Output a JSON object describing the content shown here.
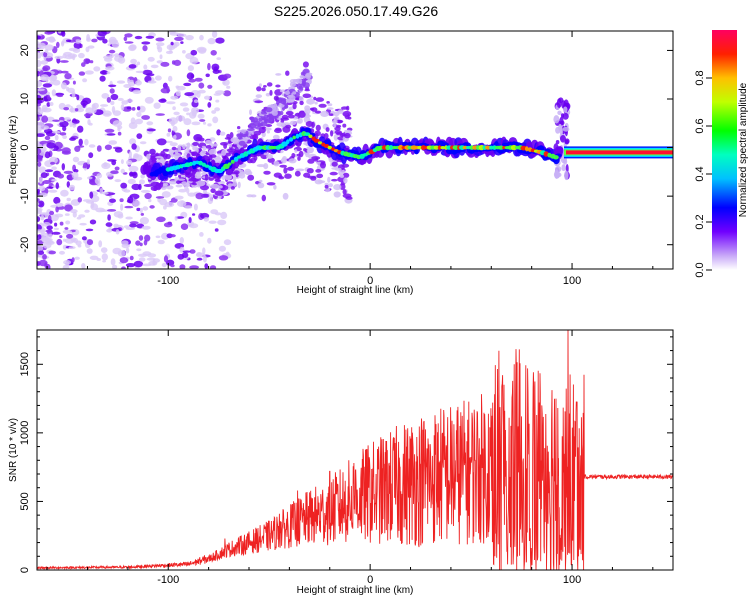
{
  "title": "S225.2026.050.17.49.G26",
  "chart_data": [
    {
      "type": "heatmap",
      "xlabel": "Height of straight line (km)",
      "ylabel": "Frequency (Hz)",
      "xlim": [
        -165,
        150
      ],
      "ylim": [
        -25,
        24
      ],
      "xticks": [
        -100,
        0,
        100
      ],
      "yticks": [
        -20,
        -10,
        0,
        10,
        20
      ],
      "ridge": [
        [
          -105,
          -5
        ],
        [
          -95,
          -4
        ],
        [
          -85,
          -3
        ],
        [
          -75,
          -5
        ],
        [
          -65,
          -2
        ],
        [
          -55,
          0
        ],
        [
          -45,
          0
        ],
        [
          -38,
          2
        ],
        [
          -32,
          3
        ],
        [
          -25,
          1
        ],
        [
          -15,
          -1
        ],
        [
          -5,
          -2
        ],
        [
          5,
          0
        ],
        [
          20,
          0
        ],
        [
          40,
          0
        ],
        [
          60,
          0
        ],
        [
          75,
          0
        ],
        [
          85,
          -1
        ],
        [
          92,
          -2
        ],
        [
          97,
          -1
        ],
        [
          110,
          -1
        ],
        [
          130,
          -1
        ],
        [
          150,
          -1
        ]
      ],
      "colorbar": {
        "label": "Normalized spectral amplitude",
        "range": [
          0,
          1
        ],
        "ticks": [
          0.0,
          0.2,
          0.4,
          0.6,
          0.8
        ]
      }
    },
    {
      "type": "line",
      "xlabel": "Height of straight line (km)",
      "ylabel": "SNR (10 * v/v)",
      "xlim": [
        -165,
        150
      ],
      "ylim": [
        0,
        1750
      ],
      "xticks": [
        -100,
        0,
        100
      ],
      "yticks": [
        0,
        500,
        1000,
        1500
      ],
      "color": "#ee2222",
      "envelope": [
        [
          -165,
          15
        ],
        [
          -120,
          20
        ],
        [
          -90,
          40
        ],
        [
          -80,
          80
        ],
        [
          -70,
          150
        ],
        [
          -60,
          200
        ],
        [
          -50,
          250
        ],
        [
          -40,
          320
        ],
        [
          -30,
          380
        ],
        [
          -20,
          430
        ],
        [
          -10,
          500
        ],
        [
          0,
          560
        ],
        [
          10,
          600
        ],
        [
          20,
          640
        ],
        [
          30,
          680
        ],
        [
          40,
          700
        ],
        [
          50,
          720
        ],
        [
          60,
          760
        ],
        [
          70,
          780
        ],
        [
          80,
          760
        ],
        [
          90,
          740
        ],
        [
          100,
          700
        ],
        [
          106,
          680
        ],
        [
          150,
          680
        ]
      ],
      "peaks": [
        [
          -72,
          230
        ],
        [
          -45,
          410
        ],
        [
          -36,
          580
        ],
        [
          -20,
          720
        ],
        [
          -8,
          780
        ],
        [
          3,
          700
        ],
        [
          18,
          900
        ],
        [
          30,
          850
        ],
        [
          52,
          800
        ],
        [
          65,
          900
        ],
        [
          75,
          1120
        ],
        [
          78,
          1470
        ],
        [
          85,
          1200
        ],
        [
          92,
          1250
        ],
        [
          98,
          1750
        ],
        [
          102,
          1150
        ]
      ]
    }
  ]
}
